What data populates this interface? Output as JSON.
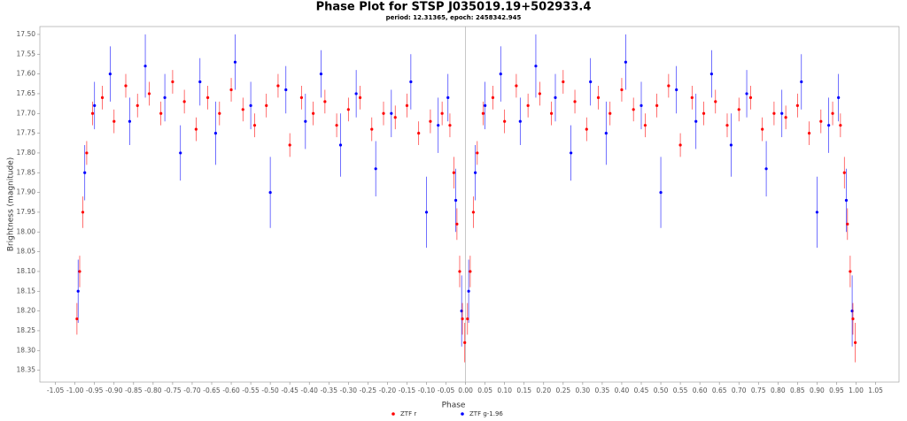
{
  "chart_data": {
    "type": "scatter",
    "title": "Phase Plot for STSP J035019.19+502933.4",
    "subtitle": "period: 12.31365, epoch: 2458342.945",
    "x_label": "Phase",
    "y_label": "Brightness (magnitude)",
    "xlim": [
      -1.09,
      1.11
    ],
    "ylim": [
      18.38,
      17.48
    ],
    "xticks": [
      -1.05,
      {
        "value": -1,
        "label": "-1.00"
      },
      -0.95,
      {
        "value": -0.9,
        "label": "-0.90"
      },
      -0.85,
      {
        "value": -0.8,
        "label": "-0.80"
      },
      -0.75,
      {
        "value": -0.7,
        "label": "-0.70"
      },
      -0.65,
      {
        "value": -0.6,
        "label": "-0.60"
      },
      -0.55,
      {
        "value": -0.5,
        "label": "-0.50"
      },
      -0.45,
      {
        "value": -0.4,
        "label": "-0.40"
      },
      -0.35,
      {
        "value": -0.3,
        "label": "-0.30"
      },
      -0.25,
      {
        "value": -0.2,
        "label": "-0.20"
      },
      -0.15,
      {
        "value": -0.1,
        "label": "-0.10"
      },
      -0.05,
      {
        "value": 0,
        "label": "0.00"
      },
      0.05,
      {
        "value": 0.1,
        "label": "0.10"
      },
      0.15,
      {
        "value": 0.2,
        "label": "0.20"
      },
      0.25,
      {
        "value": 0.3,
        "label": "0.30"
      },
      0.35,
      {
        "value": 0.4,
        "label": "0.40"
      },
      0.45,
      {
        "value": 0.5,
        "label": "0.50"
      },
      0.55,
      {
        "value": 0.6,
        "label": "0.60"
      },
      0.65,
      {
        "value": 0.7,
        "label": "0.70"
      },
      0.75,
      {
        "value": 0.8,
        "label": "0.80"
      },
      0.85,
      {
        "value": 0.9,
        "label": "0.90"
      },
      0.95,
      {
        "value": 1,
        "label": "1.00"
      },
      1.05
    ],
    "yticks": [
      {
        "value": 17.5,
        "label": "17.50"
      },
      17.55,
      {
        "value": 17.6,
        "label": "17.60"
      },
      17.65,
      {
        "value": 17.7,
        "label": "17.70"
      },
      17.75,
      {
        "value": 17.8,
        "label": "17.80"
      },
      17.85,
      {
        "value": 17.9,
        "label": "17.90"
      },
      17.95,
      {
        "value": 18,
        "label": "18.00"
      },
      18.05,
      {
        "value": 18.1,
        "label": "18.10"
      },
      18.15,
      {
        "value": 18.2,
        "label": "18.20"
      },
      18.25,
      {
        "value": 18.3,
        "label": "18.30"
      },
      18.35
    ],
    "legend": "bottom",
    "series": [
      {
        "name": "ZTF r",
        "color": "#ff0000",
        "x": [
          -0.995,
          -0.988,
          -0.98,
          -0.97,
          -0.955,
          -0.93,
          -0.9,
          -0.87,
          -0.84,
          -0.81,
          -0.78,
          -0.75,
          -0.72,
          -0.69,
          -0.66,
          -0.63,
          -0.6,
          -0.57,
          -0.54,
          -0.51,
          -0.48,
          -0.45,
          -0.42,
          -0.39,
          -0.36,
          -0.33,
          -0.3,
          -0.27,
          -0.24,
          -0.21,
          -0.18,
          -0.15,
          -0.12,
          -0.09,
          -0.06,
          -0.04,
          -0.03,
          -0.022,
          -0.015,
          -0.008,
          -0.002,
          0.005,
          0.012,
          0.02,
          0.03,
          0.045,
          0.07,
          0.1,
          0.13,
          0.16,
          0.19,
          0.22,
          0.25,
          0.28,
          0.31,
          0.34,
          0.37,
          0.4,
          0.43,
          0.46,
          0.49,
          0.52,
          0.55,
          0.58,
          0.61,
          0.64,
          0.67,
          0.7,
          0.73,
          0.76,
          0.79,
          0.82,
          0.85,
          0.88,
          0.91,
          0.94,
          0.96,
          0.97,
          0.978,
          0.985,
          0.992,
          0.998
        ],
        "values": [
          18.22,
          18.1,
          17.95,
          17.8,
          17.7,
          17.66,
          17.72,
          17.63,
          17.68,
          17.65,
          17.7,
          17.62,
          17.67,
          17.74,
          17.66,
          17.7,
          17.64,
          17.69,
          17.73,
          17.68,
          17.63,
          17.78,
          17.66,
          17.7,
          17.67,
          17.73,
          17.69,
          17.66,
          17.74,
          17.7,
          17.71,
          17.68,
          17.75,
          17.72,
          17.7,
          17.73,
          17.85,
          17.98,
          18.1,
          18.22,
          18.28,
          18.22,
          18.1,
          17.95,
          17.8,
          17.7,
          17.66,
          17.72,
          17.63,
          17.68,
          17.65,
          17.7,
          17.62,
          17.67,
          17.74,
          17.66,
          17.7,
          17.64,
          17.69,
          17.73,
          17.68,
          17.63,
          17.78,
          17.66,
          17.7,
          17.67,
          17.73,
          17.69,
          17.66,
          17.74,
          17.7,
          17.71,
          17.68,
          17.75,
          17.72,
          17.7,
          17.73,
          17.85,
          17.98,
          18.1,
          18.22,
          18.28
        ],
        "errors": [
          0.04,
          0.04,
          0.04,
          0.03,
          0.03,
          0.03,
          0.03,
          0.03,
          0.03,
          0.03,
          0.03,
          0.03,
          0.03,
          0.03,
          0.03,
          0.03,
          0.03,
          0.03,
          0.03,
          0.03,
          0.03,
          0.03,
          0.03,
          0.03,
          0.03,
          0.03,
          0.03,
          0.03,
          0.03,
          0.03,
          0.03,
          0.03,
          0.03,
          0.03,
          0.03,
          0.03,
          0.04,
          0.04,
          0.04,
          0.04,
          0.05,
          0.04,
          0.04,
          0.04,
          0.03,
          0.03,
          0.03,
          0.03,
          0.03,
          0.03,
          0.03,
          0.03,
          0.03,
          0.03,
          0.03,
          0.03,
          0.03,
          0.03,
          0.03,
          0.03,
          0.03,
          0.03,
          0.03,
          0.03,
          0.03,
          0.03,
          0.03,
          0.03,
          0.03,
          0.03,
          0.03,
          0.03,
          0.03,
          0.03,
          0.03,
          0.03,
          0.03,
          0.04,
          0.04,
          0.04,
          0.04,
          0.05
        ]
      },
      {
        "name": "ZTF g-1.96",
        "color": "#0000ff",
        "x": [
          -0.992,
          -0.975,
          -0.95,
          -0.91,
          -0.86,
          -0.82,
          -0.77,
          -0.73,
          -0.68,
          -0.64,
          -0.59,
          -0.55,
          -0.5,
          -0.46,
          -0.41,
          -0.37,
          -0.32,
          -0.28,
          -0.23,
          -0.19,
          -0.14,
          -0.1,
          -0.07,
          -0.045,
          -0.025,
          -0.01,
          0.008,
          0.025,
          0.05,
          0.09,
          0.14,
          0.18,
          0.23,
          0.27,
          0.32,
          0.36,
          0.41,
          0.45,
          0.5,
          0.54,
          0.59,
          0.63,
          0.68,
          0.72,
          0.77,
          0.81,
          0.86,
          0.9,
          0.93,
          0.955,
          0.975,
          0.99
        ],
        "values": [
          18.15,
          17.85,
          17.68,
          17.6,
          17.72,
          17.58,
          17.66,
          17.8,
          17.62,
          17.75,
          17.57,
          17.68,
          17.9,
          17.64,
          17.72,
          17.6,
          17.78,
          17.65,
          17.84,
          17.7,
          17.62,
          17.95,
          17.73,
          17.66,
          17.92,
          18.2,
          18.15,
          17.85,
          17.68,
          17.6,
          17.72,
          17.58,
          17.66,
          17.8,
          17.62,
          17.75,
          17.57,
          17.68,
          17.9,
          17.64,
          17.72,
          17.6,
          17.78,
          17.65,
          17.84,
          17.7,
          17.62,
          17.95,
          17.73,
          17.66,
          17.92,
          18.2
        ],
        "errors": [
          0.08,
          0.07,
          0.06,
          0.07,
          0.06,
          0.08,
          0.06,
          0.07,
          0.06,
          0.08,
          0.07,
          0.06,
          0.09,
          0.06,
          0.07,
          0.06,
          0.08,
          0.06,
          0.07,
          0.06,
          0.07,
          0.09,
          0.07,
          0.06,
          0.08,
          0.09,
          0.08,
          0.07,
          0.06,
          0.07,
          0.06,
          0.08,
          0.06,
          0.07,
          0.06,
          0.08,
          0.07,
          0.06,
          0.09,
          0.06,
          0.07,
          0.06,
          0.08,
          0.06,
          0.07,
          0.06,
          0.07,
          0.09,
          0.07,
          0.06,
          0.08,
          0.09
        ]
      }
    ]
  }
}
